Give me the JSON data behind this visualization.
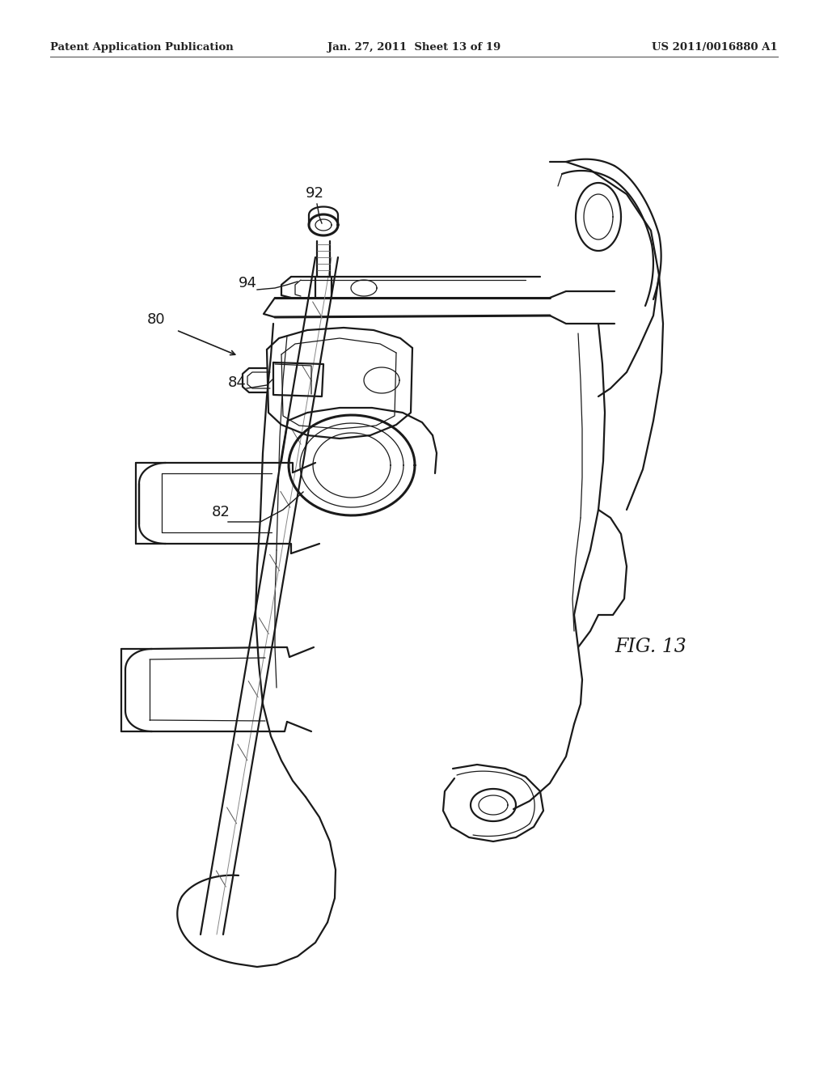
{
  "background_color": "#ffffff",
  "header_left": "Patent Application Publication",
  "header_center": "Jan. 27, 2011  Sheet 13 of 19",
  "header_right": "US 2011/0016880 A1",
  "fig_label": "FIG. 13",
  "color": "#1a1a1a",
  "lw_main": 1.6,
  "lw_thin": 0.9,
  "lw_thick": 2.2
}
